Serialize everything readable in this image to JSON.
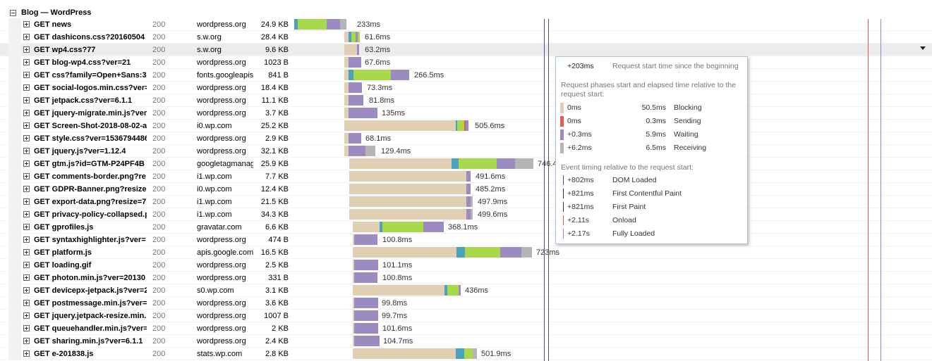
{
  "group": {
    "title": "Blog — WordPress"
  },
  "colors": {
    "blocked": "#e1cfb3",
    "dns": "#4aa3ba",
    "connect": "#a8d84b",
    "send": "#e06050",
    "wait": "#9b8bc1",
    "receive": "#b5b5b5",
    "dom_line": "#4a4a9a",
    "load_line": "#c86060",
    "fully_line": "#a080c0"
  },
  "requests": [
    {
      "url": "GET news",
      "status": "200",
      "domain": "wordpress.org",
      "size": "24.9 KB",
      "time": "233ms"
    },
    {
      "url": "GET dashicons.css?20160504",
      "status": "200",
      "domain": "s.w.org",
      "size": "28.4 KB",
      "time": "61.6ms"
    },
    {
      "url": "GET wp4.css?77",
      "status": "200",
      "domain": "s.w.org",
      "size": "9.6 KB",
      "time": "63.2ms"
    },
    {
      "url": "GET blog-wp4.css?ver=21",
      "status": "200",
      "domain": "wordpress.org",
      "size": "1023 B",
      "time": "67.6ms"
    },
    {
      "url": "GET css?family=Open+Sans:3",
      "status": "200",
      "domain": "fonts.googleapis",
      "size": "841 B",
      "time": "266.5ms"
    },
    {
      "url": "GET social-logos.min.css?ver=",
      "status": "200",
      "domain": "wordpress.org",
      "size": "18.4 KB",
      "time": "73.3ms"
    },
    {
      "url": "GET jetpack.css?ver=6.1.1",
      "status": "200",
      "domain": "wordpress.org",
      "size": "11.1 KB",
      "time": "81.8ms"
    },
    {
      "url": "GET jquery-migrate.min.js?ver",
      "status": "200",
      "domain": "wordpress.org",
      "size": "3.7 KB",
      "time": "135ms"
    },
    {
      "url": "GET Screen-Shot-2018-08-02-a",
      "status": "200",
      "domain": "i0.wp.com",
      "size": "25.2 KB",
      "time": "505.6ms"
    },
    {
      "url": "GET style.css?ver=1536794486",
      "status": "200",
      "domain": "wordpress.org",
      "size": "2.9 KB",
      "time": "68.1ms"
    },
    {
      "url": "GET jquery.js?ver=1.12.4",
      "status": "200",
      "domain": "wordpress.org",
      "size": "32.1 KB",
      "time": "129.4ms"
    },
    {
      "url": "GET gtm.js?id=GTM-P24PF4B",
      "status": "200",
      "domain": "googletagmanag",
      "size": "25.9 KB",
      "time": "746.4ms"
    },
    {
      "url": "GET comments-border.png?re",
      "status": "200",
      "domain": "i1.wp.com",
      "size": "7.7 KB",
      "time": "491.6ms"
    },
    {
      "url": "GET GDPR-Banner.png?resize",
      "status": "200",
      "domain": "i0.wp.com",
      "size": "12.4 KB",
      "time": "485.2ms"
    },
    {
      "url": "GET export-data.png?resize=7",
      "status": "200",
      "domain": "i1.wp.com",
      "size": "21.5 KB",
      "time": "497.9ms"
    },
    {
      "url": "GET privacy-policy-collapsed.p",
      "status": "200",
      "domain": "i1.wp.com",
      "size": "34.3 KB",
      "time": "499.6ms"
    },
    {
      "url": "GET gprofiles.js",
      "status": "200",
      "domain": "gravatar.com",
      "size": "6.6 KB",
      "time": "368.1ms"
    },
    {
      "url": "GET syntaxhighlighter.js?ver=",
      "status": "200",
      "domain": "wordpress.org",
      "size": "474 B",
      "time": "100.8ms"
    },
    {
      "url": "GET platform.js",
      "status": "200",
      "domain": "apis.google.com",
      "size": "16.5 KB",
      "time": "723ms"
    },
    {
      "url": "GET loading.gif",
      "status": "200",
      "domain": "wordpress.org",
      "size": "2.5 KB",
      "time": "101.1ms"
    },
    {
      "url": "GET photon.min.js?ver=20130",
      "status": "200",
      "domain": "wordpress.org",
      "size": "331 B",
      "time": "100.8ms"
    },
    {
      "url": "GET devicepx-jetpack.js?ver=2",
      "status": "200",
      "domain": "s0.wp.com",
      "size": "3.1 KB",
      "time": "436ms"
    },
    {
      "url": "GET postmessage.min.js?ver=",
      "status": "200",
      "domain": "wordpress.org",
      "size": "3.6 KB",
      "time": "99.8ms"
    },
    {
      "url": "GET jquery.jetpack-resize.min.",
      "status": "200",
      "domain": "wordpress.org",
      "size": "1007 B",
      "time": "99.7ms"
    },
    {
      "url": "GET queuehandler.min.js?ver=",
      "status": "200",
      "domain": "wordpress.org",
      "size": "2 KB",
      "time": "101.6ms"
    },
    {
      "url": "GET sharing.min.js?ver=6.1.1",
      "status": "200",
      "domain": "wordpress.org",
      "size": "2.4 KB",
      "time": "104.7ms"
    },
    {
      "url": "GET e-201838.js",
      "status": "200",
      "domain": "stats.wp.com",
      "size": "2.8 KB",
      "time": "501.9ms"
    }
  ],
  "tooltip": {
    "start_value": "+203ms",
    "start_label": "Request start time since the beginning",
    "phases_title": "Request phases start and elapsed time relative to the request start:",
    "phases": [
      {
        "start": "0ms",
        "elapsed": "50.5ms",
        "name": "Blocking",
        "color": "#e1cfb3"
      },
      {
        "start": "0ms",
        "elapsed": "0.3ms",
        "name": "Sending",
        "color": "#e06050"
      },
      {
        "start": "+0.3ms",
        "elapsed": "5.9ms",
        "name": "Waiting",
        "color": "#9b8bc1"
      },
      {
        "start": "+6.2ms",
        "elapsed": "6.5ms",
        "name": "Receiving",
        "color": "#b5b5b5"
      }
    ],
    "events_title": "Event timing relative to the request start:",
    "events": [
      {
        "value": "+802ms",
        "name": "DOM Loaded",
        "color": "#4a4a9a"
      },
      {
        "value": "+821ms",
        "name": "First Contentful Paint",
        "color": "#333333"
      },
      {
        "value": "+821ms",
        "name": "First Paint",
        "color": "#333333"
      },
      {
        "value": "+2.11s",
        "name": "Onload",
        "color": "#c86060"
      },
      {
        "value": "+2.17s",
        "name": "Fully Loaded",
        "color": "#a080c0"
      }
    ]
  }
}
